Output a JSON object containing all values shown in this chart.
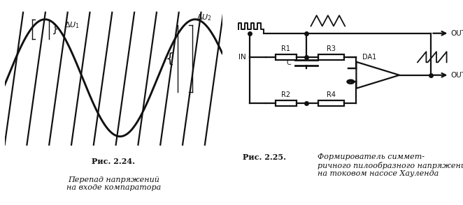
{
  "bg_color": "#ffffff",
  "fig_caption_left": "Рис. 2.24.",
  "fig_text_left": "Перепад напряжений\nна входе компаратора",
  "fig_caption_right": "Рис. 2.25.",
  "fig_text_right": "Формирователь симмет-\nричного пилообразного напряжения\nна токовом насосе Хауленда",
  "line_color": "#111111",
  "lw": 1.6
}
